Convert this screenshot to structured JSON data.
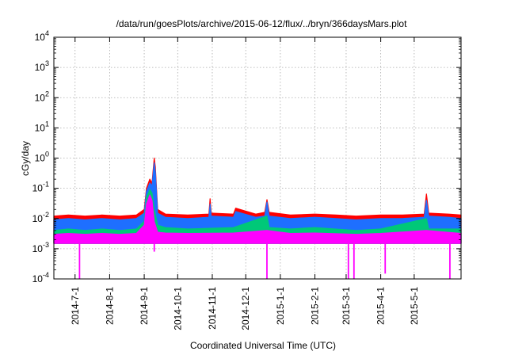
{
  "chart_data": {
    "type": "area",
    "title": "/data/run/goesPlots/archive/2015-06-12/flux/../bryn/366daysMars.plot",
    "xlabel": "Coordinated Universal Time (UTC)",
    "ylabel": "cGy/day",
    "x_scale": "time",
    "x_range": [
      "2014-06-12",
      "2015-06-12"
    ],
    "y_scale": "log",
    "y_range": [
      0.0001,
      10000
    ],
    "y_ticks": [
      {
        "value": 0.0001,
        "base": "10",
        "exp": "-4"
      },
      {
        "value": 0.001,
        "base": "10",
        "exp": "-3"
      },
      {
        "value": 0.01,
        "base": "10",
        "exp": "-2"
      },
      {
        "value": 0.1,
        "base": "10",
        "exp": "-1"
      },
      {
        "value": 1,
        "base": "10",
        "exp": "0"
      },
      {
        "value": 10,
        "base": "10",
        "exp": "1"
      },
      {
        "value": 100,
        "base": "10",
        "exp": "2"
      },
      {
        "value": 1000,
        "base": "10",
        "exp": "3"
      },
      {
        "value": 10000,
        "base": "10",
        "exp": "4"
      }
    ],
    "x_ticks": [
      {
        "date": "2014-07-01",
        "label": "2014-7-1"
      },
      {
        "date": "2014-08-01",
        "label": "2014-8-1"
      },
      {
        "date": "2014-09-01",
        "label": "2014-9-1"
      },
      {
        "date": "2014-10-01",
        "label": "2014-10-1"
      },
      {
        "date": "2014-11-01",
        "label": "2014-11-1"
      },
      {
        "date": "2014-12-01",
        "label": "2014-12-1"
      },
      {
        "date": "2015-01-01",
        "label": "2015-1-1"
      },
      {
        "date": "2015-02-01",
        "label": "2015-2-1"
      },
      {
        "date": "2015-03-01",
        "label": "2015-3-1"
      },
      {
        "date": "2015-04-01",
        "label": "2015-4-1"
      },
      {
        "date": "2015-05-01",
        "label": "2015-5-1"
      }
    ],
    "grid": true,
    "legend": "none",
    "series": [
      {
        "color": "#ff0000",
        "points": [
          [
            "2014-06-12",
            0.012
          ],
          [
            "2014-06-25",
            0.013
          ],
          [
            "2014-07-10",
            0.012
          ],
          [
            "2014-07-25",
            0.013
          ],
          [
            "2014-08-10",
            0.012
          ],
          [
            "2014-08-25",
            0.013
          ],
          [
            "2014-09-01",
            0.02
          ],
          [
            "2014-09-03",
            0.1
          ],
          [
            "2014-09-06",
            0.2
          ],
          [
            "2014-09-08",
            0.15
          ],
          [
            "2014-09-10",
            1.0
          ],
          [
            "2014-09-11",
            0.5
          ],
          [
            "2014-09-13",
            0.02
          ],
          [
            "2014-09-20",
            0.014
          ],
          [
            "2014-10-10",
            0.013
          ],
          [
            "2014-10-29",
            0.014
          ],
          [
            "2014-10-30",
            0.045
          ],
          [
            "2014-10-31",
            0.015
          ],
          [
            "2014-11-20",
            0.014
          ],
          [
            "2014-11-22",
            0.022
          ],
          [
            "2014-12-10",
            0.014
          ],
          [
            "2014-12-18",
            0.016
          ],
          [
            "2014-12-20",
            0.042
          ],
          [
            "2014-12-22",
            0.016
          ],
          [
            "2015-01-10",
            0.013
          ],
          [
            "2015-02-01",
            0.014
          ],
          [
            "2015-02-20",
            0.013
          ],
          [
            "2015-03-10",
            0.012
          ],
          [
            "2015-04-01",
            0.013
          ],
          [
            "2015-04-20",
            0.013
          ],
          [
            "2015-05-10",
            0.014
          ],
          [
            "2015-05-12",
            0.065
          ],
          [
            "2015-05-14",
            0.015
          ],
          [
            "2015-06-01",
            0.014
          ],
          [
            "2015-06-12",
            0.013
          ]
        ]
      },
      {
        "color": "#1e6fff",
        "points": [
          [
            "2014-06-12",
            0.009
          ],
          [
            "2014-06-25",
            0.01
          ],
          [
            "2014-07-10",
            0.009
          ],
          [
            "2014-07-25",
            0.01
          ],
          [
            "2014-08-10",
            0.009
          ],
          [
            "2014-08-25",
            0.01
          ],
          [
            "2014-09-01",
            0.015
          ],
          [
            "2014-09-03",
            0.08
          ],
          [
            "2014-09-06",
            0.15
          ],
          [
            "2014-09-08",
            0.12
          ],
          [
            "2014-09-10",
            0.7
          ],
          [
            "2014-09-11",
            0.35
          ],
          [
            "2014-09-13",
            0.015
          ],
          [
            "2014-09-20",
            0.011
          ],
          [
            "2014-10-10",
            0.01
          ],
          [
            "2014-10-29",
            0.011
          ],
          [
            "2014-10-30",
            0.03
          ],
          [
            "2014-10-31",
            0.012
          ],
          [
            "2014-11-20",
            0.011
          ],
          [
            "2014-11-22",
            0.017
          ],
          [
            "2014-12-10",
            0.011
          ],
          [
            "2014-12-18",
            0.012
          ],
          [
            "2014-12-20",
            0.035
          ],
          [
            "2014-12-22",
            0.012
          ],
          [
            "2015-01-10",
            0.01
          ],
          [
            "2015-02-01",
            0.011
          ],
          [
            "2015-02-20",
            0.01
          ],
          [
            "2015-03-10",
            0.009
          ],
          [
            "2015-04-01",
            0.01
          ],
          [
            "2015-04-20",
            0.01
          ],
          [
            "2015-05-10",
            0.011
          ],
          [
            "2015-05-12",
            0.04
          ],
          [
            "2015-05-14",
            0.012
          ],
          [
            "2015-06-01",
            0.011
          ],
          [
            "2015-06-12",
            0.01
          ]
        ]
      },
      {
        "color": "#00c878",
        "points": [
          [
            "2014-06-12",
            0.004
          ],
          [
            "2014-06-25",
            0.0045
          ],
          [
            "2014-07-10",
            0.004
          ],
          [
            "2014-07-25",
            0.0045
          ],
          [
            "2014-08-10",
            0.004
          ],
          [
            "2014-08-25",
            0.0045
          ],
          [
            "2014-09-01",
            0.008
          ],
          [
            "2014-09-03",
            0.05
          ],
          [
            "2014-09-06",
            0.09
          ],
          [
            "2014-09-08",
            0.07
          ],
          [
            "2014-09-10",
            0.02
          ],
          [
            "2014-09-13",
            0.006
          ],
          [
            "2014-09-20",
            0.005
          ],
          [
            "2014-10-10",
            0.0045
          ],
          [
            "2014-11-20",
            0.005
          ],
          [
            "2014-12-20",
            0.012
          ],
          [
            "2014-12-22",
            0.005
          ],
          [
            "2015-01-10",
            0.0045
          ],
          [
            "2015-02-01",
            0.005
          ],
          [
            "2015-03-10",
            0.004
          ],
          [
            "2015-04-01",
            0.0045
          ],
          [
            "2015-05-12",
            0.01
          ],
          [
            "2015-05-14",
            0.0045
          ],
          [
            "2015-06-12",
            0.0045
          ]
        ]
      },
      {
        "color": "#ff00ff",
        "points": [
          [
            "2014-06-12",
            0.003
          ],
          [
            "2014-06-25",
            0.0032
          ],
          [
            "2014-07-10",
            0.003
          ],
          [
            "2014-07-25",
            0.0032
          ],
          [
            "2014-08-10",
            0.003
          ],
          [
            "2014-08-25",
            0.0032
          ],
          [
            "2014-09-01",
            0.006
          ],
          [
            "2014-09-03",
            0.03
          ],
          [
            "2014-09-06",
            0.06
          ],
          [
            "2014-09-08",
            0.04
          ],
          [
            "2014-09-10",
            0.008
          ],
          [
            "2014-09-13",
            0.0035
          ],
          [
            "2014-09-20",
            0.0033
          ],
          [
            "2014-10-10",
            0.0032
          ],
          [
            "2014-11-20",
            0.0033
          ],
          [
            "2014-12-20",
            0.004
          ],
          [
            "2015-01-10",
            0.0032
          ],
          [
            "2015-02-01",
            0.0033
          ],
          [
            "2015-03-10",
            0.003
          ],
          [
            "2015-04-01",
            0.0032
          ],
          [
            "2015-05-12",
            0.004
          ],
          [
            "2015-06-12",
            0.0032
          ]
        ]
      }
    ],
    "floor_series": {
      "color": "#ff00ff",
      "base_value": 0.0015,
      "dropouts": [
        [
          "2014-07-05",
          0.0001
        ],
        [
          "2014-09-10",
          0.0008
        ],
        [
          "2014-12-20",
          0.0001
        ],
        [
          "2015-03-03",
          0.0001
        ],
        [
          "2015-03-08",
          0.0001
        ],
        [
          "2015-04-05",
          0.00015
        ],
        [
          "2015-06-02",
          0.0001
        ]
      ]
    }
  }
}
